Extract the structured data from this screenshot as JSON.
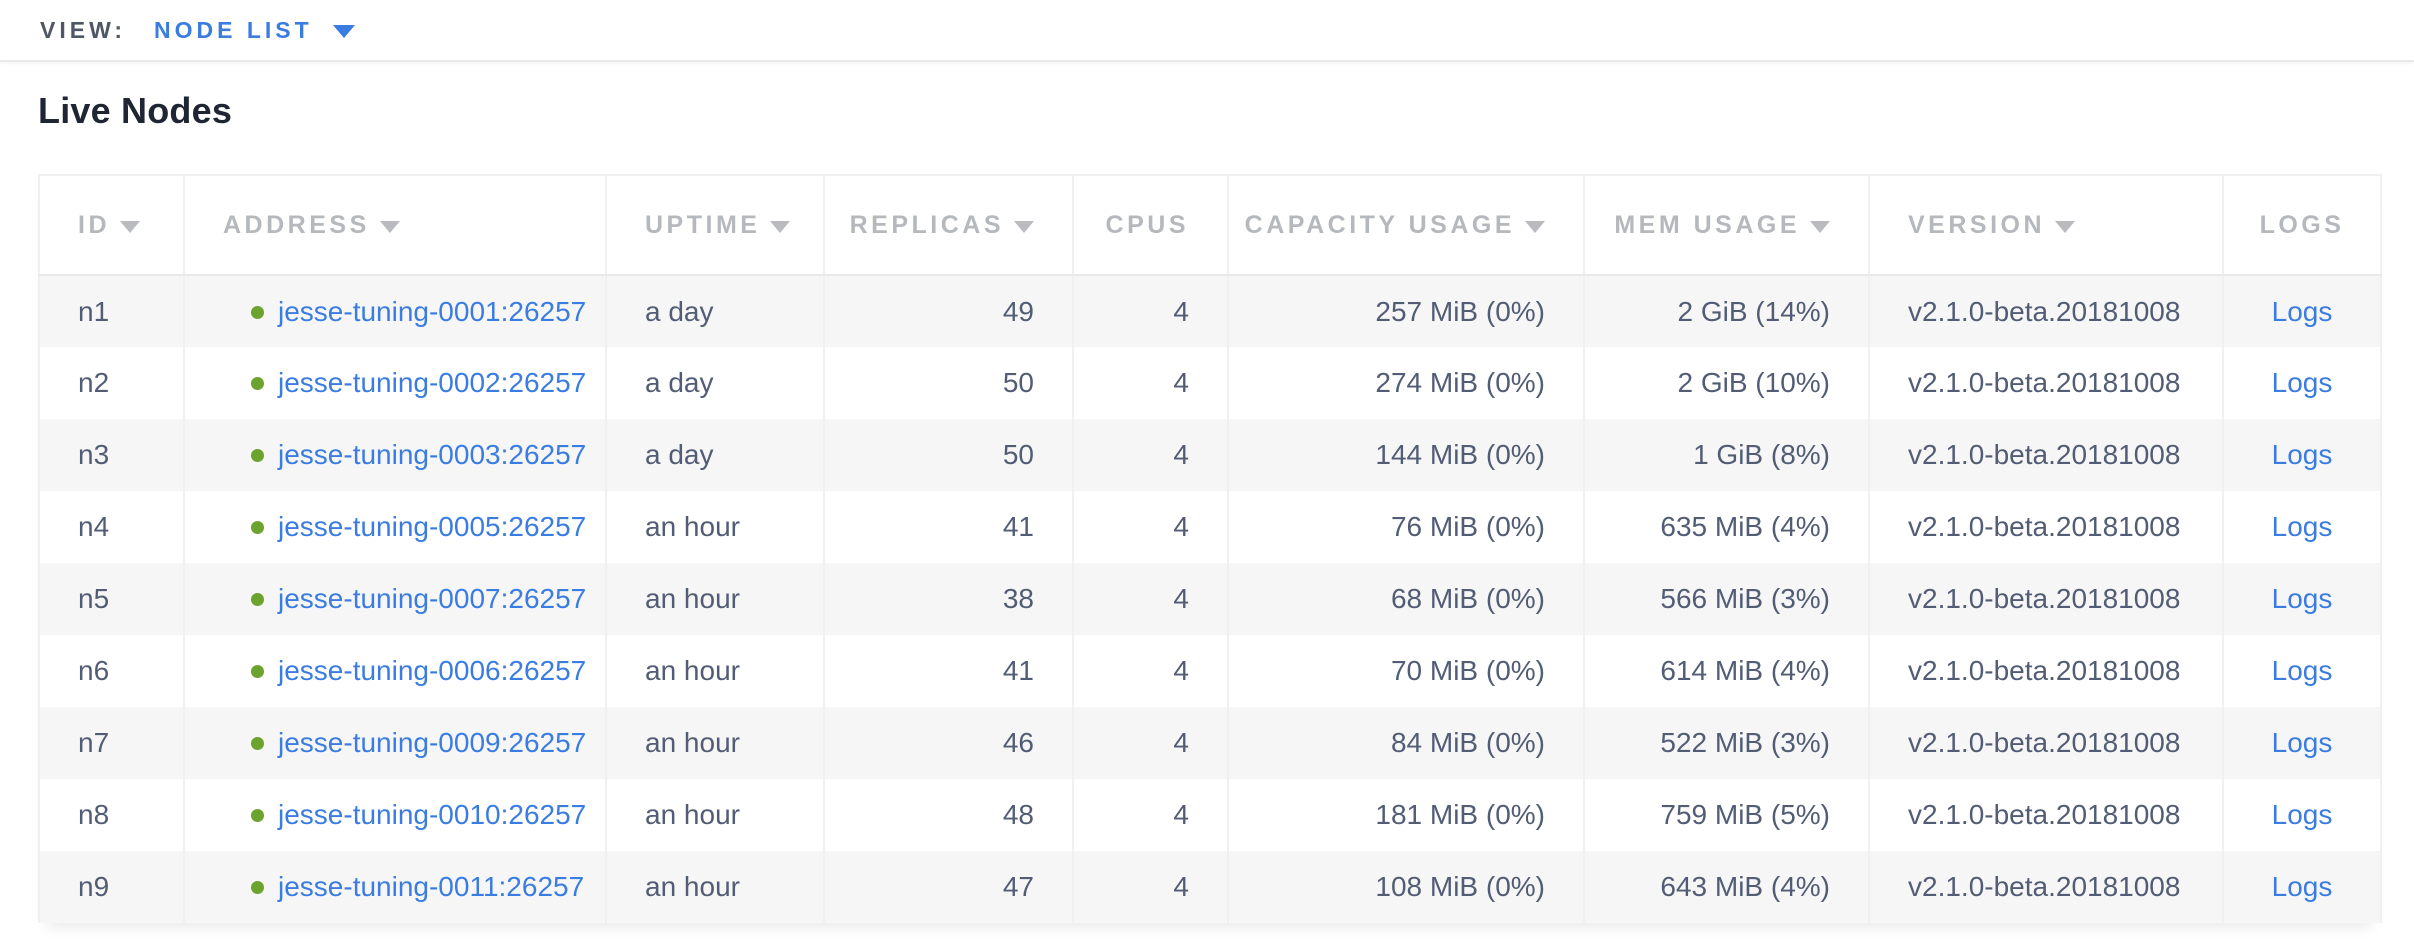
{
  "toolbar": {
    "view_label": "VIEW:",
    "view_value": "NODE LIST"
  },
  "page": {
    "title": "Live Nodes"
  },
  "table": {
    "columns": [
      {
        "key": "id",
        "label": "ID",
        "sortable": true,
        "align": "left"
      },
      {
        "key": "address",
        "label": "ADDRESS",
        "sortable": true,
        "align": "left"
      },
      {
        "key": "uptime",
        "label": "UPTIME",
        "sortable": true,
        "align": "left"
      },
      {
        "key": "replicas",
        "label": "REPLICAS",
        "sortable": true,
        "align": "right"
      },
      {
        "key": "cpus",
        "label": "CPUS",
        "sortable": false,
        "align": "right"
      },
      {
        "key": "capacity",
        "label": "CAPACITY USAGE",
        "sortable": true,
        "align": "right"
      },
      {
        "key": "mem",
        "label": "MEM USAGE",
        "sortable": true,
        "align": "right"
      },
      {
        "key": "version",
        "label": "VERSION",
        "sortable": true,
        "align": "left"
      },
      {
        "key": "logs",
        "label": "LOGS",
        "sortable": false,
        "align": "center"
      }
    ],
    "rows": [
      {
        "id": "n1",
        "address": "jesse-tuning-0001:26257",
        "status": "healthy",
        "uptime": "a day",
        "replicas": "49",
        "cpus": "4",
        "capacity": "257 MiB (0%)",
        "mem": "2 GiB (14%)",
        "version": "v2.1.0-beta.20181008",
        "logs": "Logs"
      },
      {
        "id": "n2",
        "address": "jesse-tuning-0002:26257",
        "status": "healthy",
        "uptime": "a day",
        "replicas": "50",
        "cpus": "4",
        "capacity": "274 MiB (0%)",
        "mem": "2 GiB (10%)",
        "version": "v2.1.0-beta.20181008",
        "logs": "Logs"
      },
      {
        "id": "n3",
        "address": "jesse-tuning-0003:26257",
        "status": "healthy",
        "uptime": "a day",
        "replicas": "50",
        "cpus": "4",
        "capacity": "144 MiB (0%)",
        "mem": "1 GiB (8%)",
        "version": "v2.1.0-beta.20181008",
        "logs": "Logs"
      },
      {
        "id": "n4",
        "address": "jesse-tuning-0005:26257",
        "status": "healthy",
        "uptime": "an hour",
        "replicas": "41",
        "cpus": "4",
        "capacity": "76 MiB (0%)",
        "mem": "635 MiB (4%)",
        "version": "v2.1.0-beta.20181008",
        "logs": "Logs"
      },
      {
        "id": "n5",
        "address": "jesse-tuning-0007:26257",
        "status": "healthy",
        "uptime": "an hour",
        "replicas": "38",
        "cpus": "4",
        "capacity": "68 MiB (0%)",
        "mem": "566 MiB (3%)",
        "version": "v2.1.0-beta.20181008",
        "logs": "Logs"
      },
      {
        "id": "n6",
        "address": "jesse-tuning-0006:26257",
        "status": "healthy",
        "uptime": "an hour",
        "replicas": "41",
        "cpus": "4",
        "capacity": "70 MiB (0%)",
        "mem": "614 MiB (4%)",
        "version": "v2.1.0-beta.20181008",
        "logs": "Logs"
      },
      {
        "id": "n7",
        "address": "jesse-tuning-0009:26257",
        "status": "healthy",
        "uptime": "an hour",
        "replicas": "46",
        "cpus": "4",
        "capacity": "84 MiB (0%)",
        "mem": "522 MiB (3%)",
        "version": "v2.1.0-beta.20181008",
        "logs": "Logs"
      },
      {
        "id": "n8",
        "address": "jesse-tuning-0010:26257",
        "status": "healthy",
        "uptime": "an hour",
        "replicas": "48",
        "cpus": "4",
        "capacity": "181 MiB (0%)",
        "mem": "759 MiB (5%)",
        "version": "v2.1.0-beta.20181008",
        "logs": "Logs"
      },
      {
        "id": "n9",
        "address": "jesse-tuning-0011:26257",
        "status": "healthy",
        "uptime": "an hour",
        "replicas": "47",
        "cpus": "4",
        "capacity": "108 MiB (0%)",
        "mem": "643 MiB (4%)",
        "version": "v2.1.0-beta.20181008",
        "logs": "Logs"
      }
    ]
  },
  "colors": {
    "accent_blue": "#3a7ce1",
    "healthy_green": "#6ba32c",
    "header_gray": "#b5b8bc",
    "cell_slate": "#525d75"
  }
}
